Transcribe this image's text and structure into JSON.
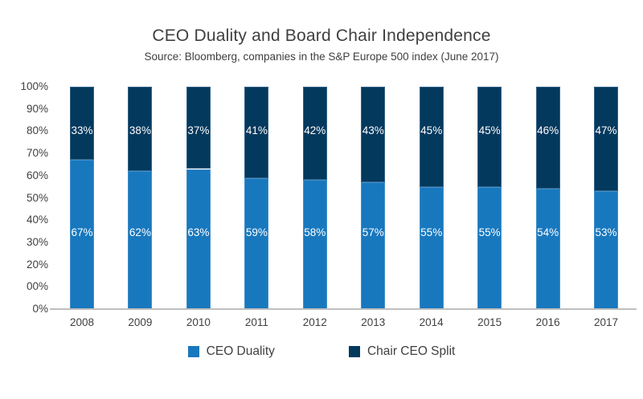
{
  "chart_data": {
    "type": "bar",
    "stacked": true,
    "title": "CEO Duality and Board Chair Independence",
    "subtitle": "Source: Bloomberg, companies in the S&P Europe 500 index (June 2017)",
    "categories": [
      "2008",
      "2009",
      "2010",
      "2011",
      "2012",
      "2013",
      "2014",
      "2015",
      "2016",
      "2017"
    ],
    "series": [
      {
        "name": "CEO Duality",
        "color": "#1878BE",
        "values": [
          67,
          62,
          63,
          59,
          58,
          57,
          55,
          55,
          54,
          53
        ],
        "labels": [
          "67%",
          "62%",
          "63%",
          "59%",
          "58%",
          "57%",
          "55%",
          "55%",
          "54%",
          "53%"
        ]
      },
      {
        "name": "Chair CEO Split",
        "color": "#04395E",
        "values": [
          33,
          38,
          37,
          41,
          42,
          43,
          45,
          45,
          46,
          47
        ],
        "labels": [
          "33%",
          "38%",
          "37%",
          "41%",
          "42%",
          "43%",
          "45%",
          "45%",
          "46%",
          "47%"
        ]
      }
    ],
    "ylim": [
      0,
      100
    ],
    "y_tick_labels": [
      "100%",
      "90%",
      "80%",
      "70%",
      "60%",
      "50%",
      "40%",
      "30%",
      "20%",
      "00%",
      "0%"
    ],
    "grid": false,
    "legend_position": "bottom",
    "axis_line_color": "#BFBFBF",
    "text_color": "#3F3F3F",
    "bar_label_color": "#FFFFFF"
  }
}
